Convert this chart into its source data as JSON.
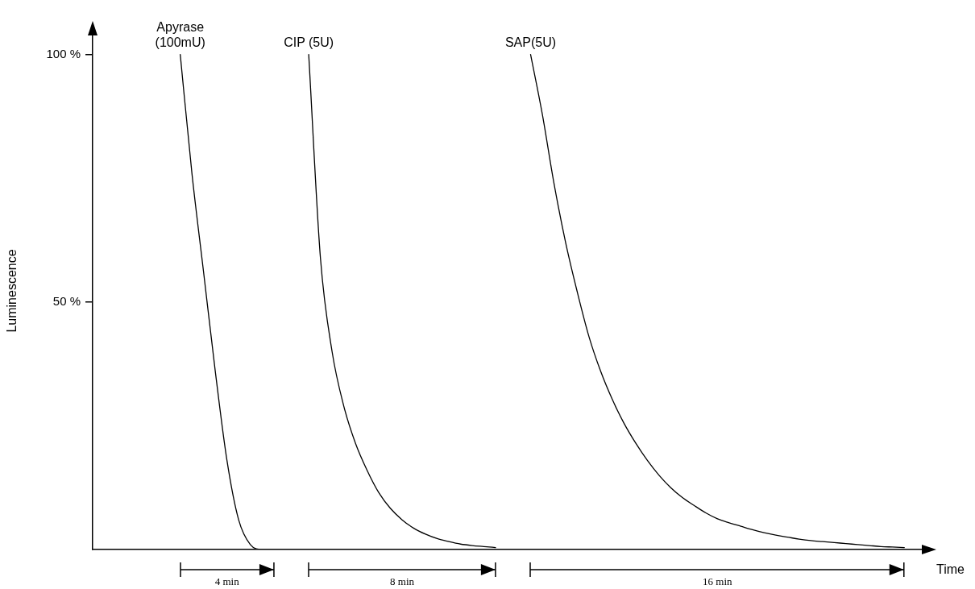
{
  "chart_data": {
    "type": "line",
    "xlabel": "Time",
    "ylabel": "Luminescence",
    "categories": [
      null,
      null,
      null,
      null,
      null,
      null,
      null,
      null,
      null,
      null,
      null,
      null,
      null,
      null,
      null,
      null,
      null,
      null,
      null,
      null,
      null,
      null,
      null,
      null,
      null,
      null,
      null,
      null,
      null,
      null,
      null,
      null,
      null,
      null,
      null,
      null,
      null,
      null,
      null,
      null,
      null,
      null,
      null,
      null,
      null,
      null,
      null,
      null,
      null,
      null,
      null,
      null,
      null,
      null,
      null,
      null,
      null,
      null,
      null,
      null,
      null,
      null,
      null,
      null,
      null,
      null,
      null,
      null,
      null,
      null,
      null
    ],
    "ylim": [
      0,
      104.5
    ],
    "yticks": [
      {
        "value": 100,
        "label": "100 %"
      },
      {
        "value": 50,
        "label": "50 %"
      }
    ],
    "tick_labels": "y",
    "grid": false,
    "legend": false,
    "marker": "none",
    "line_style": "solid",
    "series": [
      {
        "name": "Apyrase (100mU)",
        "color": "#000000",
        "values": [
          null,
          null,
          null,
          null,
          null,
          null,
          null,
          100,
          76,
          56,
          36,
          18,
          6,
          1,
          0,
          0,
          null,
          null,
          null,
          null,
          null,
          null,
          null,
          null,
          null,
          null,
          null,
          null,
          null,
          null,
          null,
          null,
          null,
          null,
          null,
          null,
          null,
          null,
          null,
          null,
          null,
          null,
          null,
          null,
          null,
          null,
          null,
          null,
          null,
          null,
          null,
          null,
          null,
          null,
          null,
          null,
          null,
          null,
          null,
          null,
          null,
          null,
          null,
          null,
          null,
          null,
          null,
          null,
          null,
          null,
          null
        ]
      },
      {
        "name": "CIP (5U)",
        "color": "#000000",
        "values": [
          null,
          null,
          null,
          null,
          null,
          null,
          null,
          null,
          null,
          null,
          null,
          null,
          null,
          null,
          null,
          null,
          null,
          null,
          100,
          59,
          40,
          29,
          21.5,
          16,
          11.5,
          8.3,
          6,
          4.3,
          3.1,
          2.2,
          1.6,
          1.1,
          0.8,
          0.6,
          0.4,
          null,
          null,
          null,
          null,
          null,
          null,
          null,
          null,
          null,
          null,
          null,
          null,
          null,
          null,
          null,
          null,
          null,
          null,
          null,
          null,
          null,
          null,
          null,
          null,
          null,
          null,
          null,
          null,
          null,
          null,
          null,
          null,
          null,
          null,
          null,
          null
        ]
      },
      {
        "name": "SAP(5U)",
        "color": "#000000",
        "values": [
          null,
          null,
          null,
          null,
          null,
          null,
          null,
          null,
          null,
          null,
          null,
          null,
          null,
          null,
          null,
          null,
          null,
          null,
          null,
          null,
          null,
          null,
          null,
          null,
          null,
          null,
          null,
          null,
          null,
          null,
          null,
          null,
          null,
          null,
          null,
          null,
          null,
          100,
          88,
          74,
          62,
          52,
          43,
          36,
          30.3,
          25.5,
          21.5,
          18,
          15,
          12.5,
          10.5,
          8.9,
          7.4,
          6.2,
          5.4,
          4.7,
          4,
          3.4,
          2.9,
          2.5,
          2.1,
          1.8,
          1.6,
          1.4,
          1.2,
          1,
          0.8,
          0.6,
          0.5,
          0.4,
          null
        ]
      }
    ],
    "annotations": [
      "4 min",
      "8 min",
      "16 min"
    ]
  }
}
